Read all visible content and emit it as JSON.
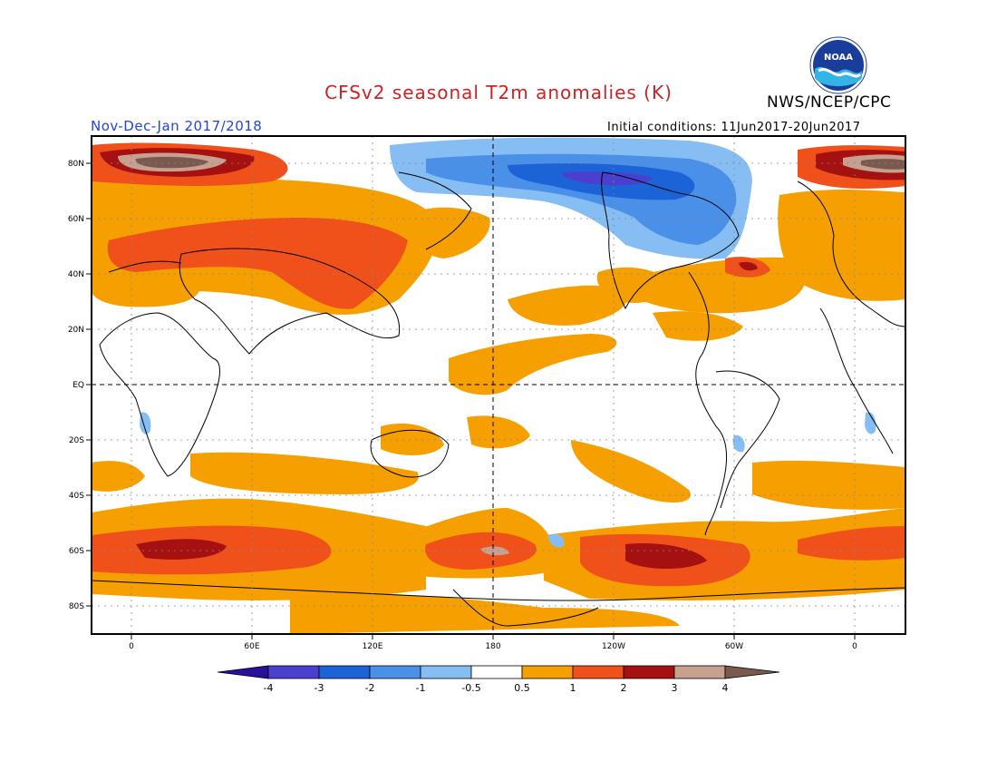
{
  "header": {
    "title": "CFSv2 seasonal T2m anomalies (K)",
    "agency": "NWS/NCEP/CPC",
    "season": "Nov-Dec-Jan 2017/2018",
    "initial_conditions": "Initial conditions: 11Jun2017-20Jun2017",
    "logo_text": "NOAA"
  },
  "axes": {
    "lat_labels": [
      "80N",
      "60N",
      "40N",
      "20N",
      "EQ",
      "20S",
      "40S",
      "60S",
      "80S"
    ],
    "lon_labels": [
      "0",
      "60E",
      "120E",
      "180",
      "120W",
      "60W",
      "0"
    ]
  },
  "colorbar": {
    "labels": [
      "-4",
      "-3",
      "-2",
      "-1",
      "-0.5",
      "0.5",
      "1",
      "2",
      "3",
      "4"
    ],
    "colors": [
      "#2a0f9a",
      "#4a3fcf",
      "#1d63d8",
      "#4a90e8",
      "#86bdf2",
      "#ffffff",
      "#f5a000",
      "#f0501a",
      "#a51010",
      "#c8a090",
      "#7a5a4e"
    ]
  },
  "map": {
    "colors": {
      "warm1": "#f5a000",
      "warm2": "#f0501a",
      "warm3": "#a51010",
      "warm4": "#c8a090",
      "warm5": "#7a5a4e",
      "cold1": "#86bdf2",
      "cold2": "#4a90e8",
      "cold3": "#1d63d8",
      "cold4": "#4a3fcf"
    }
  }
}
